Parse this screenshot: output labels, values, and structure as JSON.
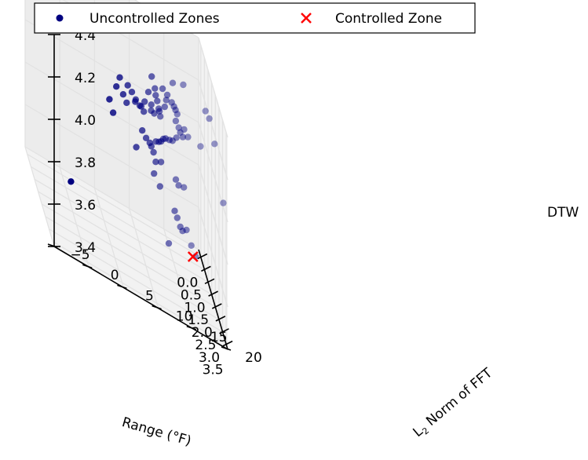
{
  "chart_data": {
    "type": "scatter",
    "projection": "3d",
    "legend": {
      "placement": "top-center",
      "entries": [
        {
          "label": "Uncontrolled Zones",
          "marker": "circle",
          "color": "#000080"
        },
        {
          "label": "Controlled Zone",
          "marker": "x",
          "color": "#ff0000"
        }
      ]
    },
    "axes": {
      "x": {
        "label": "Range (°F)",
        "range": [
          -0.3,
          3.7
        ],
        "ticks": [
          0.0,
          0.5,
          1.0,
          1.5,
          2.0,
          2.5,
          3.0,
          3.5
        ],
        "tick_labels": [
          "0.0",
          "0.5",
          "1.0",
          "1.5",
          "2.0",
          "2.5",
          "3.0",
          "3.5"
        ]
      },
      "y": {
        "label_main": "L",
        "label_sub": "2",
        "label_rest": " Norm of FFT",
        "range": [
          -5,
          20
        ],
        "ticks": [
          -5,
          0,
          5,
          10,
          15,
          20
        ],
        "tick_labels": [
          "−5",
          "0",
          "5",
          "10",
          "15",
          "20"
        ]
      },
      "z": {
        "label": "DTW",
        "range": [
          3.4,
          4.4
        ],
        "ticks": [
          3.4,
          3.6,
          3.8,
          4.0,
          4.2,
          4.4
        ],
        "tick_labels": [
          "3.4",
          "3.6",
          "3.8",
          "4.0",
          "4.2",
          "4.4"
        ]
      }
    },
    "grid": true,
    "series": [
      {
        "name": "Uncontrolled Zones",
        "color": "#000080",
        "marker": "circle",
        "points": [
          [
            0.3,
            8.0,
            4.05
          ],
          [
            0.32,
            7.5,
            4.0
          ],
          [
            0.3,
            8.5,
            3.98
          ],
          [
            0.3,
            9.0,
            3.95
          ],
          [
            0.32,
            6.5,
            3.92
          ],
          [
            0.35,
            7.0,
            3.87
          ],
          [
            0.45,
            9.0,
            4.05
          ],
          [
            0.55,
            9.5,
            4.04
          ],
          [
            0.6,
            10.0,
            4.02
          ],
          [
            0.68,
            10.5,
            4.01
          ],
          [
            0.72,
            9.8,
            4.02
          ],
          [
            0.75,
            11.0,
            4.0
          ],
          [
            0.78,
            10.6,
            4.02
          ],
          [
            0.8,
            12.0,
            4.03
          ],
          [
            0.85,
            12.5,
            4.15
          ],
          [
            0.88,
            12.8,
            4.1
          ],
          [
            0.9,
            13.0,
            4.07
          ],
          [
            0.92,
            13.2,
            4.04
          ],
          [
            0.86,
            11.0,
            4.06
          ],
          [
            0.95,
            13.5,
            4.18
          ],
          [
            0.98,
            14.0,
            4.14
          ],
          [
            0.88,
            12.0,
            4.2
          ],
          [
            0.9,
            11.5,
            4.12
          ],
          [
            0.95,
            12.5,
            4.13
          ],
          [
            1.0,
            13.0,
            4.07
          ],
          [
            1.02,
            11.8,
            4.08
          ],
          [
            1.05,
            12.2,
            4.05
          ],
          [
            1.1,
            14.8,
            4.25
          ],
          [
            1.12,
            14.0,
            4.18
          ],
          [
            1.15,
            13.6,
            4.12
          ],
          [
            1.25,
            14.5,
            4.17
          ],
          [
            1.28,
            14.8,
            4.16
          ],
          [
            1.3,
            15.0,
            4.15
          ],
          [
            1.35,
            15.2,
            4.14
          ],
          [
            1.4,
            16.0,
            4.3
          ],
          [
            1.52,
            14.8,
            4.12
          ],
          [
            1.55,
            15.2,
            4.1
          ],
          [
            1.5,
            10.0,
            3.98
          ],
          [
            1.55,
            10.5,
            3.96
          ],
          [
            1.58,
            11.0,
            3.95
          ],
          [
            1.6,
            11.2,
            3.94
          ],
          [
            1.62,
            11.5,
            3.92
          ],
          [
            1.65,
            11.8,
            3.98
          ],
          [
            1.68,
            12.2,
            3.99
          ],
          [
            1.7,
            12.5,
            4.0
          ],
          [
            1.72,
            12.8,
            4.02
          ],
          [
            1.74,
            13.1,
            4.03
          ],
          [
            1.8,
            13.6,
            4.04
          ],
          [
            1.85,
            14.0,
            4.05
          ],
          [
            1.9,
            14.5,
            4.08
          ],
          [
            1.95,
            15.0,
            4.12
          ],
          [
            2.0,
            15.5,
            4.15
          ],
          [
            2.05,
            16.0,
            4.13
          ],
          [
            1.92,
            11.5,
            3.91
          ],
          [
            1.98,
            12.2,
            3.93
          ],
          [
            2.3,
            15.0,
            4.14
          ],
          [
            2.3,
            14.0,
            3.92
          ],
          [
            2.4,
            14.3,
            3.91
          ],
          [
            2.45,
            15.0,
            3.92
          ],
          [
            2.55,
            18.0,
            4.35
          ],
          [
            2.6,
            18.5,
            4.33
          ],
          [
            2.85,
            19.0,
            4.25
          ],
          [
            2.35,
            17.5,
            4.15
          ],
          [
            3.1,
            20.0,
            4.02
          ],
          [
            2.62,
            13.5,
            3.8
          ],
          [
            2.68,
            13.8,
            3.78
          ],
          [
            2.72,
            14.2,
            3.75
          ],
          [
            2.75,
            14.5,
            3.74
          ],
          [
            2.8,
            15.0,
            3.76
          ],
          [
            3.0,
            15.5,
            3.72
          ],
          [
            3.1,
            16.0,
            3.69
          ],
          [
            1.15,
            9.5,
            3.85
          ],
          [
            1.55,
            12.5,
            3.77
          ],
          [
            1.8,
            13.5,
            3.55
          ],
          [
            3.15,
            -2.0,
            3.7
          ],
          [
            1.2,
            12.0,
            3.78
          ]
        ]
      },
      {
        "name": "Controlled Zone",
        "color": "#ff0000",
        "marker": "x",
        "points": [
          [
            3.7,
            15.0,
            3.74
          ]
        ]
      }
    ]
  }
}
